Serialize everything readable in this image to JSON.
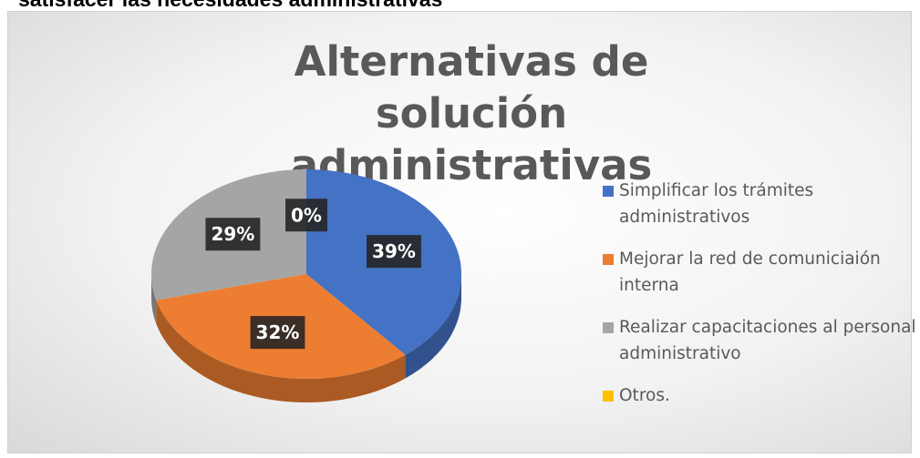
{
  "caption": "satisfacer las necesidades administrativas",
  "chart_data": {
    "type": "pie",
    "title": "Alternativas de solución administrativas",
    "categories": [
      "Simplificar los trámites administrativos",
      "Mejorar la red de comuniciaión interna",
      "Realizar capacitaciones al personal administrativo",
      "Otros."
    ],
    "values": [
      39,
      32,
      29,
      0
    ],
    "value_labels": [
      "39%",
      "32%",
      "29%",
      "0%"
    ],
    "colors": [
      "#4472c4",
      "#ed7d31",
      "#a5a5a5",
      "#ffc000"
    ],
    "legend": "right"
  }
}
